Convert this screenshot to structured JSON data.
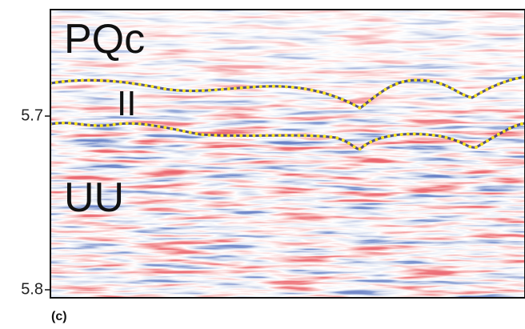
{
  "figure": {
    "panel_label": "(c)",
    "y_ticks": [
      5.7,
      5.8
    ],
    "unit_labels": [
      "PQc",
      "II",
      "UU"
    ]
  }
}
